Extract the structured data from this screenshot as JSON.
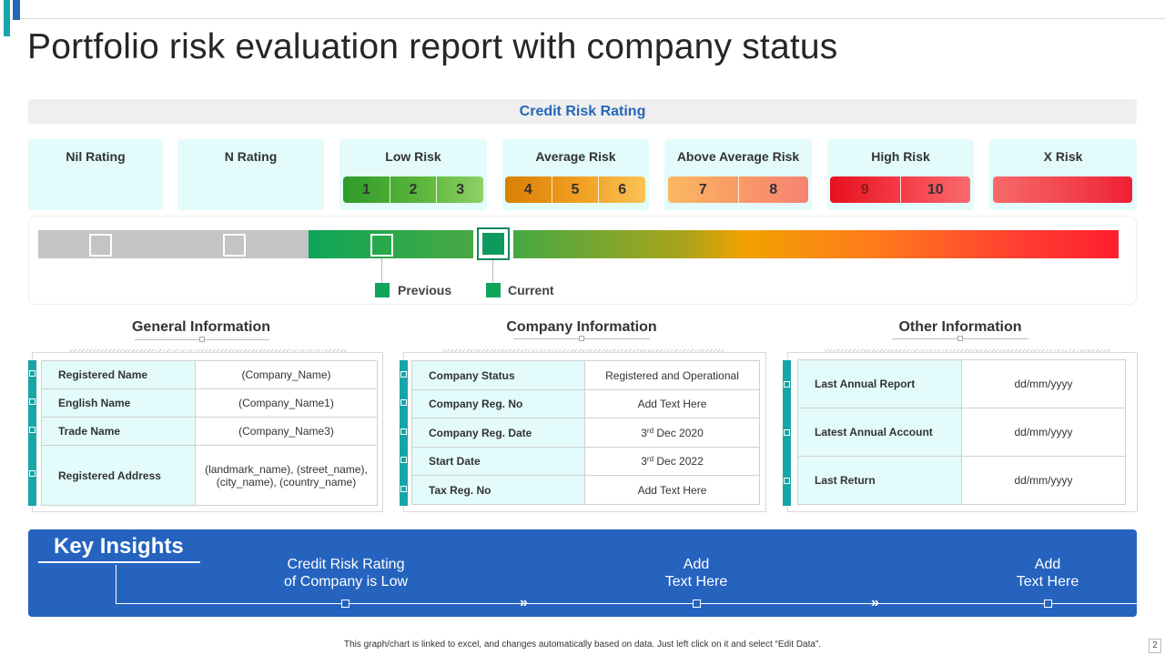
{
  "title": "Portfolio risk evaluation report with company status",
  "credit_risk_rating": "Credit Risk Rating",
  "rating_cards": [
    {
      "title": "Nil Rating",
      "levels": []
    },
    {
      "title": "N Rating",
      "levels": []
    },
    {
      "title": "Low Risk",
      "levels": [
        "1",
        "2",
        "3"
      ]
    },
    {
      "title": "Average Risk",
      "levels": [
        "4",
        "5",
        "6"
      ]
    },
    {
      "title": "Above Average Risk",
      "levels": [
        "7",
        "8"
      ]
    },
    {
      "title": "High Risk",
      "levels": [
        "9",
        "10"
      ]
    },
    {
      "title": "X Risk",
      "levels": []
    }
  ],
  "gauge": {
    "legend_previous": "Previous",
    "legend_current": "Current",
    "legend_color": "#0ea45a"
  },
  "general_information": {
    "title": "General Information",
    "rows": [
      {
        "label": "Registered Name",
        "value": "(Company_Name)"
      },
      {
        "label": "English  Name",
        "value": "(Company_Name1)"
      },
      {
        "label": "Trade Name",
        "value": "(Company_Name3)"
      },
      {
        "label": "Registered Address",
        "value": "(landmark_name), (street_name),\n(city_name), (country_name)"
      }
    ]
  },
  "company_information": {
    "title": "Company Information",
    "rows": [
      {
        "label": "Company  Status",
        "value": "Registered and Operational"
      },
      {
        "label": "Company  Reg. No",
        "value": "Add Text Here"
      },
      {
        "label": "Company  Reg. Date",
        "value_pre": "3",
        "value_sup": "rd",
        "value_post": " Dec 2020"
      },
      {
        "label": "Start Date",
        "value_pre": "3",
        "value_sup": "rd",
        "value_post": " Dec 2022"
      },
      {
        "label": "Tax Reg. No",
        "value": "Add Text Here"
      }
    ]
  },
  "other_information": {
    "title": "Other Information",
    "rows": [
      {
        "label": "Last Annual Report",
        "value": "dd/mm/yyyy"
      },
      {
        "label": "Latest Annual Account",
        "value": "dd/mm/yyyy"
      },
      {
        "label": "Last Return",
        "value": "dd/mm/yyyy"
      }
    ]
  },
  "key_insights": {
    "title": "Key Insights",
    "items": [
      "Credit Risk Rating\nof Company is Low",
      "Add\nText Here",
      "Add\nText Here"
    ]
  },
  "footer": "This graph/chart is linked to excel, and changes automatically based on data. Just left click on it and select “Edit Data”.",
  "page_number": "2"
}
